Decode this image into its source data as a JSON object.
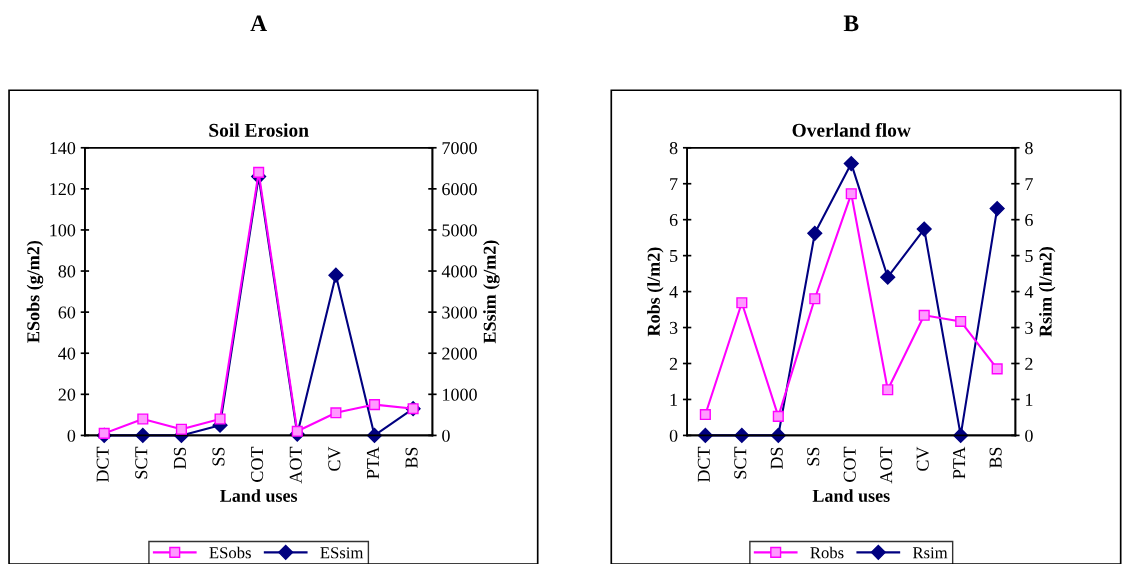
{
  "chart_data": [
    {
      "type": "line",
      "title": "A",
      "subtitle": "Soil Erosion",
      "xlabel": "Land uses",
      "ylabel": "ESobs (g/m2)",
      "y2label": "ESsim (g/m2)",
      "categories": [
        "DCT",
        "SCT",
        "DS",
        "SS",
        "COT",
        "AOT",
        "CV",
        "PTA",
        "BS"
      ],
      "series": [
        {
          "name": "ESobs",
          "color": "#ff00ff",
          "marker": "square",
          "values": [
            1,
            8,
            3,
            8,
            128,
            2,
            11,
            15,
            13
          ]
        },
        {
          "name": "ESsim",
          "color": "#000080",
          "marker": "diamond",
          "axis": "y2",
          "values": [
            0,
            0,
            0,
            250,
            6300,
            30,
            3900,
            0,
            650
          ]
        }
      ],
      "ylim": [
        0,
        140
      ],
      "yticks": [
        0,
        20,
        40,
        60,
        80,
        100,
        120,
        140
      ],
      "y2lim": [
        0,
        7000
      ],
      "y2ticks": [
        0,
        1000,
        2000,
        3000,
        4000,
        5000,
        6000,
        7000
      ],
      "grid": false,
      "legend": "bottom"
    },
    {
      "type": "line",
      "title": "B",
      "subtitle": "Overland flow",
      "xlabel": "Land uses",
      "ylabel": "Robs (l/m2)",
      "y2label": "Rsim (l/m2)",
      "categories": [
        "DCT",
        "SCT",
        "DS",
        "SS",
        "COT",
        "AOT",
        "CV",
        "PTA",
        "BS"
      ],
      "series": [
        {
          "name": "Robs",
          "color": "#ff00ff",
          "marker": "square",
          "values": [
            0.58,
            3.69,
            0.53,
            3.8,
            6.72,
            1.27,
            3.34,
            3.17,
            1.85
          ]
        },
        {
          "name": "Rsim",
          "color": "#000080",
          "marker": "diamond",
          "axis": "y2",
          "values": [
            0,
            0,
            0,
            5.62,
            7.56,
            4.4,
            5.74,
            0,
            6.31
          ]
        }
      ],
      "ylim": [
        0,
        8
      ],
      "yticks": [
        0,
        1,
        2,
        3,
        4,
        5,
        6,
        7,
        8
      ],
      "y2lim": [
        0,
        8
      ],
      "y2ticks": [
        0,
        1,
        2,
        3,
        4,
        5,
        6,
        7,
        8
      ],
      "grid": false,
      "legend": "bottom"
    }
  ]
}
